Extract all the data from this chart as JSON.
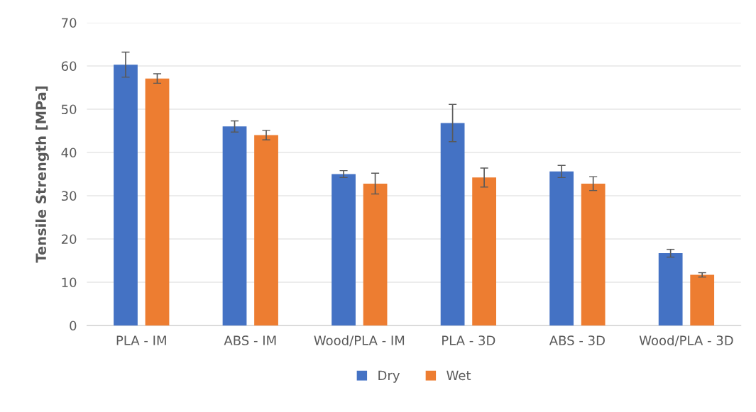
{
  "chart_data": {
    "type": "bar",
    "ylabel": "Tensile Strength [MPa]",
    "categories": [
      "PLA - IM",
      "ABS - IM",
      "Wood/PLA - IM",
      "PLA - 3D",
      "ABS - 3D",
      "Wood/PLA - 3D"
    ],
    "series": [
      {
        "name": "Dry",
        "color": "#4472c4",
        "values": [
          60.3,
          46.0,
          35.0,
          46.8,
          35.6,
          16.7
        ],
        "errors": [
          2.9,
          1.3,
          0.8,
          4.3,
          1.4,
          0.9
        ]
      },
      {
        "name": "Wet",
        "color": "#ed7d31",
        "values": [
          57.1,
          44.0,
          32.8,
          34.2,
          32.8,
          11.7
        ],
        "errors": [
          1.1,
          1.1,
          2.4,
          2.2,
          1.6,
          0.5
        ]
      }
    ],
    "ylim": [
      0,
      70
    ],
    "yticks": [
      0,
      10,
      20,
      30,
      40,
      50,
      60,
      70
    ],
    "grid": "y",
    "legend": "bottom"
  }
}
